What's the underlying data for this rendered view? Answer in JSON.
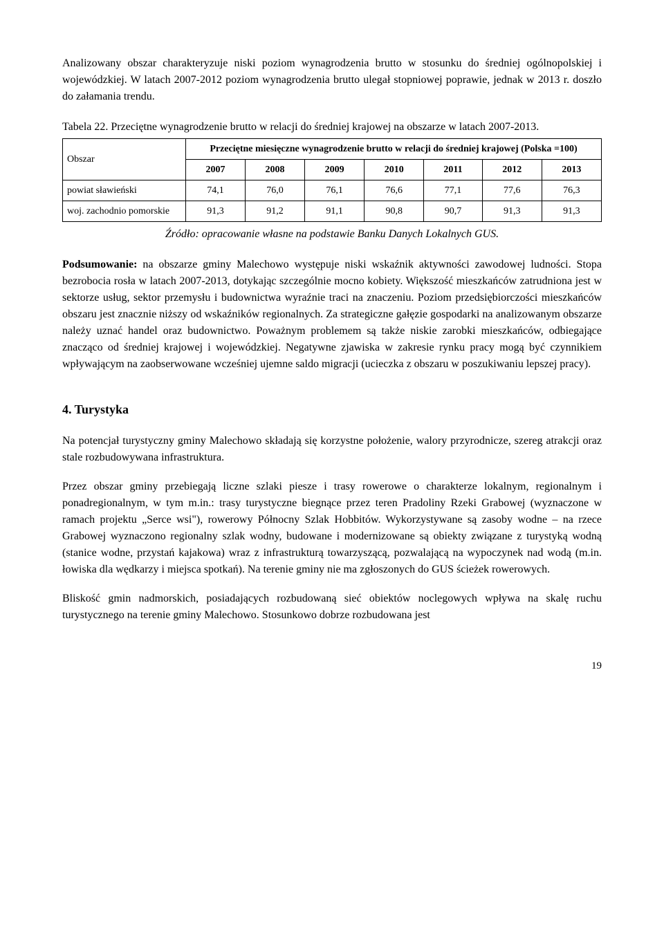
{
  "para1": "Analizowany obszar charakteryzuje niski poziom wynagrodzenia brutto w stosunku do średniej ogólnopolskiej i wojewódzkiej. W latach 2007-2012 poziom wynagrodzenia brutto ulegał stopniowej poprawie, jednak w 2013 r. doszło do załamania trendu.",
  "tableCaption": "Tabela 22. Przeciętne wynagrodzenie brutto w relacji do średniej krajowej na obszarze w latach 2007-2013.",
  "table": {
    "header_obszar": "Obszar",
    "header_top": "Przeciętne miesięczne wynagrodzenie brutto w relacji do średniej krajowej (Polska =100)",
    "years": [
      "2007",
      "2008",
      "2009",
      "2010",
      "2011",
      "2012",
      "2013"
    ],
    "rows": [
      {
        "label": "powiat sławieński",
        "values": [
          "74,1",
          "76,0",
          "76,1",
          "76,6",
          "77,1",
          "77,6",
          "76,3"
        ]
      },
      {
        "label": "woj. zachodnio pomorskie",
        "values": [
          "91,3",
          "91,2",
          "91,1",
          "90,8",
          "90,7",
          "91,3",
          "91,3"
        ]
      }
    ]
  },
  "source": "Źródło: opracowanie własne na podstawie Banku Danych Lokalnych GUS.",
  "summary_label": "Podsumowanie:",
  "summary_text": " na obszarze gminy Malechowo występuje niski wskaźnik aktywności zawodowej ludności. Stopa bezrobocia rosła w latach 2007-2013, dotykając szczególnie mocno kobiety. Większość mieszkańców zatrudniona jest w sektorze usług, sektor przemysłu i budownictwa wyraźnie traci na znaczeniu. Poziom przedsiębiorczości mieszkańców obszaru jest znacznie niższy od wskaźników regionalnych. Za strategiczne gałęzie gospodarki na analizowanym obszarze należy uznać handel oraz budownictwo. Poważnym problemem są także niskie zarobki mieszkańców, odbiegające znacząco od średniej krajowej i wojewódzkiej. Negatywne zjawiska w zakresie rynku pracy mogą być czynnikiem wpływającym na zaobserwowane wcześniej ujemne saldo migracji (ucieczka z obszaru w poszukiwaniu lepszej pracy).",
  "sectionHeading": "4. Turystyka",
  "para2": "Na potencjał turystyczny gminy Malechowo składają się korzystne położenie, walory przyrodnicze, szereg atrakcji oraz stale rozbudowywana infrastruktura.",
  "para3": "Przez obszar gminy przebiegają liczne szlaki piesze i trasy rowerowe o charakterze lokalnym, regionalnym i ponadregionalnym, w tym m.in.: trasy turystyczne biegnące przez teren Pradoliny Rzeki Grabowej (wyznaczone w ramach projektu „Serce wsi\"), rowerowy Północny Szlak Hobbitów. Wykorzystywane są zasoby wodne – na rzece Grabowej wyznaczono regionalny szlak wodny, budowane i modernizowane są obiekty związane z turystyką wodną (stanice wodne, przystań kajakowa) wraz z infrastrukturą towarzyszącą, pozwalającą na wypoczynek nad wodą (m.in. łowiska dla wędkarzy i miejsca spotkań). Na terenie gminy nie ma zgłoszonych do GUS ścieżek rowerowych.",
  "para4": "Bliskość gmin nadmorskich, posiadających rozbudowaną sieć obiektów noclegowych wpływa na skalę ruchu turystycznego na terenie gminy Malechowo. Stosunkowo dobrze rozbudowana jest",
  "pageNumber": "19"
}
